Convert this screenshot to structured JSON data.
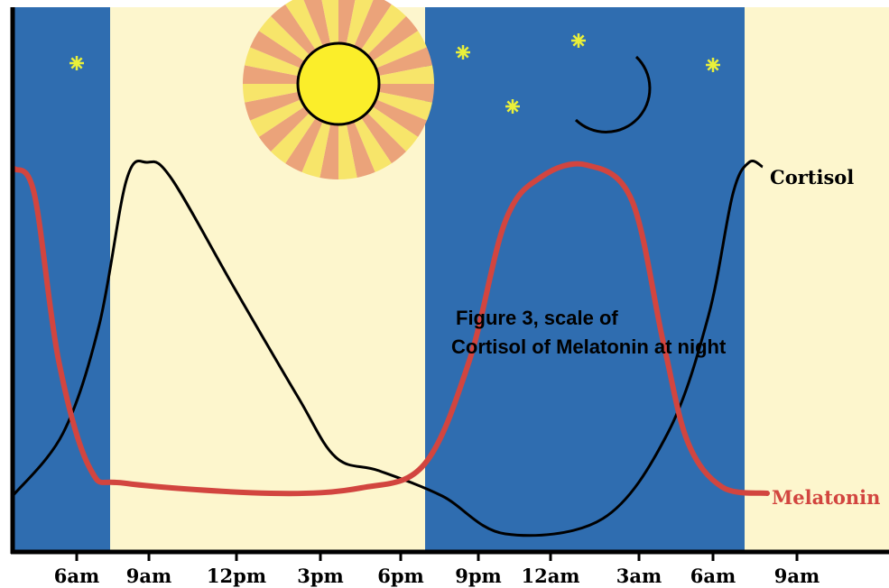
{
  "curves": {
    "cortisol": "Cortisol",
    "melatonin": "Melatonin"
  },
  "caption": {
    "line1": "Figure 3, scale of",
    "line2": "Cortisol of Melatonin at night"
  },
  "axis": {
    "labels": [
      "6am",
      "9am",
      "12pm",
      "3pm",
      "6pm",
      "9pm",
      "12am",
      "3am",
      "6am",
      "9am"
    ]
  }
}
